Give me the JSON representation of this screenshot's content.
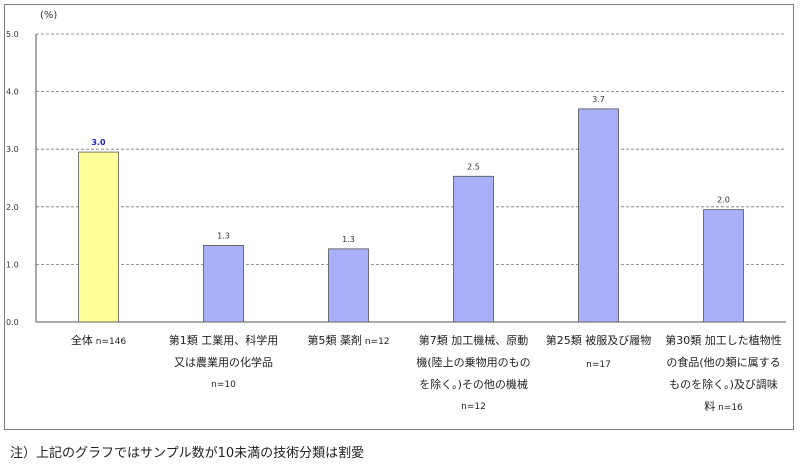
{
  "chart_data": {
    "type": "bar",
    "unit_label": "(%)",
    "ylim": [
      0,
      5
    ],
    "yticks": [
      "0.0",
      "1.0",
      "2.0",
      "3.0",
      "4.0",
      "5.0"
    ],
    "grid": true,
    "categories": [
      {
        "lines": [
          "全体"
        ],
        "n": "n=146"
      },
      {
        "lines": [
          "第1類 工業用、科学用",
          "又は農業用の化学品"
        ],
        "n": "n=10"
      },
      {
        "lines": [
          "第5類 薬剤"
        ],
        "n": "n=12"
      },
      {
        "lines": [
          "第7類 加工機械、原動",
          "機(陸上の乗物用のもの",
          "を除く。)その他の機械"
        ],
        "n": "n=12"
      },
      {
        "lines": [
          "第25類 被服及び履物"
        ],
        "n": "n=17"
      },
      {
        "lines": [
          "第30類 加工した植物性",
          "の食品(他の類に属する",
          "ものを除く。)及び調味",
          "料"
        ],
        "n": "n=16"
      }
    ],
    "values": [
      2.95,
      1.33,
      1.27,
      2.53,
      3.7,
      1.95
    ],
    "value_labels": [
      "3.0",
      "1.3",
      "1.3",
      "2.5",
      "3.7",
      "2.0"
    ],
    "highlight_index": 0,
    "colors": {
      "highlight": "#ffff99",
      "default": "#aab0f7",
      "border": "#555555",
      "grid": "#777777",
      "highlight_label": "#1f1fd0"
    }
  },
  "footnote": "注）上記のグラフではサンプル数が10未満の技術分類は割愛"
}
